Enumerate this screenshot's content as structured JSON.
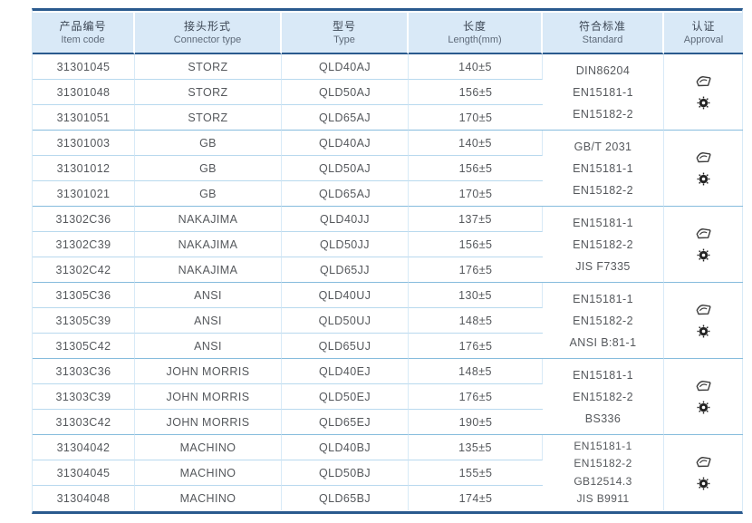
{
  "table": {
    "columns": [
      {
        "zh": "产品编号",
        "en": "Item code"
      },
      {
        "zh": "接头形式",
        "en": "Connector type"
      },
      {
        "zh": "型号",
        "en": "Type"
      },
      {
        "zh": "长度",
        "en": "Length(mm)"
      },
      {
        "zh": "符合标准",
        "en": "Standard"
      },
      {
        "zh": "认证",
        "en": "Approval"
      }
    ],
    "groups": [
      {
        "connector": "STORZ",
        "rows": [
          {
            "code": "31301045",
            "type": "QLD40AJ",
            "length": "140±5"
          },
          {
            "code": "31301048",
            "type": "QLD50AJ",
            "length": "156±5"
          },
          {
            "code": "31301051",
            "type": "QLD65AJ",
            "length": "170±5"
          }
        ],
        "standards": [
          "DIN86204",
          "EN15181-1",
          "EN15182-2"
        ],
        "approval_icons": [
          "certificate-stamp-icon",
          "seal-icon"
        ]
      },
      {
        "connector": "GB",
        "rows": [
          {
            "code": "31301003",
            "type": "QLD40AJ",
            "length": "140±5"
          },
          {
            "code": "31301012",
            "type": "QLD50AJ",
            "length": "156±5"
          },
          {
            "code": "31301021",
            "type": "QLD65AJ",
            "length": "170±5"
          }
        ],
        "standards": [
          "GB/T 2031",
          "EN15181-1",
          "EN15182-2"
        ],
        "approval_icons": [
          "certificate-stamp-icon",
          "seal-icon"
        ]
      },
      {
        "connector": "NAKAJIMA",
        "rows": [
          {
            "code": "31302C36",
            "type": "QLD40JJ",
            "length": "137±5"
          },
          {
            "code": "31302C39",
            "type": "QLD50JJ",
            "length": "156±5"
          },
          {
            "code": "31302C42",
            "type": "QLD65JJ",
            "length": "176±5"
          }
        ],
        "standards": [
          "EN15181-1",
          "EN15182-2",
          "JIS F7335"
        ],
        "approval_icons": [
          "certificate-stamp-icon",
          "seal-icon"
        ]
      },
      {
        "connector": "ANSI",
        "rows": [
          {
            "code": "31305C36",
            "type": "QLD40UJ",
            "length": "130±5"
          },
          {
            "code": "31305C39",
            "type": "QLD50UJ",
            "length": "148±5"
          },
          {
            "code": "31305C42",
            "type": "QLD65UJ",
            "length": "176±5"
          }
        ],
        "standards": [
          "EN15181-1",
          "EN15182-2",
          "ANSI B:81-1"
        ],
        "approval_icons": [
          "certificate-stamp-icon",
          "seal-icon"
        ]
      },
      {
        "connector": "JOHN MORRIS",
        "rows": [
          {
            "code": "31303C36",
            "type": "QLD40EJ",
            "length": "148±5"
          },
          {
            "code": "31303C39",
            "type": "QLD50EJ",
            "length": "176±5"
          },
          {
            "code": "31303C42",
            "type": "QLD65EJ",
            "length": "190±5"
          }
        ],
        "standards": [
          "EN15181-1",
          "EN15182-2",
          "BS336"
        ],
        "approval_icons": [
          "certificate-stamp-icon",
          "seal-icon"
        ]
      },
      {
        "connector": "MACHINO",
        "rows": [
          {
            "code": "31304042",
            "type": "QLD40BJ",
            "length": "135±5"
          },
          {
            "code": "31304045",
            "type": "QLD50BJ",
            "length": "155±5"
          },
          {
            "code": "31304048",
            "type": "QLD65BJ",
            "length": "174±5"
          }
        ],
        "standards": [
          "EN15181-1",
          "EN15182-2",
          "GB12514.3",
          "JIS B9911"
        ],
        "approval_icons": [
          "certificate-stamp-icon",
          "seal-icon"
        ]
      }
    ],
    "colors": {
      "accent_navy": "#2a5a8e",
      "header_bg": "#d9e9f7",
      "row_line": "#b8d9ee",
      "group_line": "#86bcdd",
      "body_text": "#55585c",
      "header_text": "#3c4654"
    }
  }
}
